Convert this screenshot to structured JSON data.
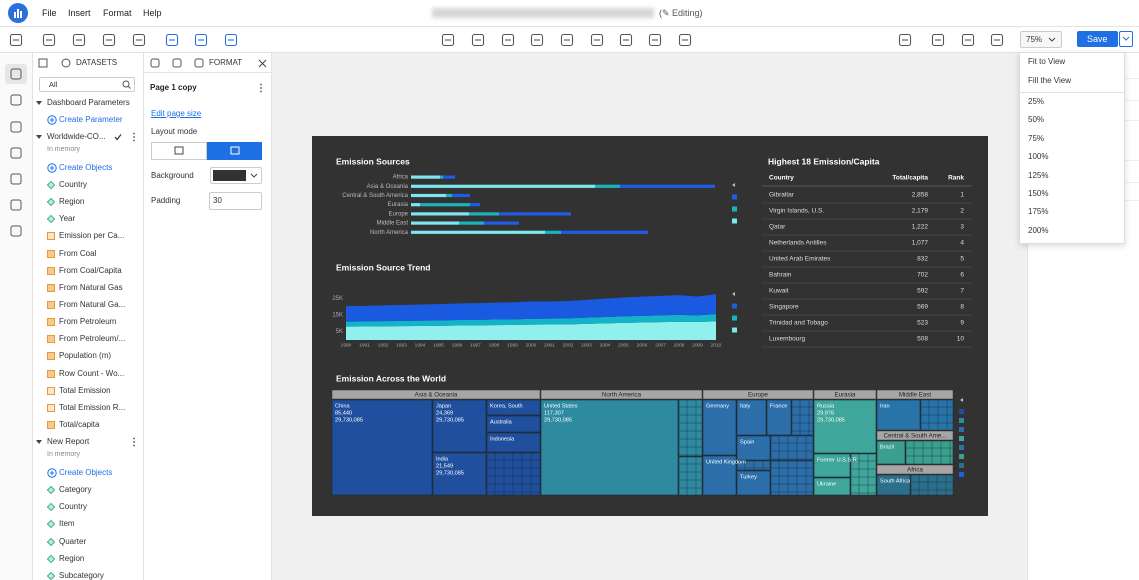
{
  "app_bar": {
    "menu": [
      "File",
      "Insert",
      "Format",
      "Help"
    ],
    "status": "(✎ Editing)",
    "zoom": "75%",
    "save": "Save"
  },
  "zoom_menu": {
    "fit": [
      "Fit to View",
      "Fill the View"
    ],
    "levels": [
      "25%",
      "50%",
      "75%",
      "100%",
      "125%",
      "150%",
      "175%",
      "200%"
    ]
  },
  "datasets_panel": {
    "tab": "DATASETS",
    "filter": "All",
    "groups": [
      {
        "name": "Dashboard Parameters",
        "action": "Create Parameter",
        "items": []
      },
      {
        "name": "Worldwide-CO...",
        "note": "In memory",
        "action": "Create Objects",
        "items": [
          "Country",
          "Region",
          "Year",
          "Emission per Ca...",
          "From Coal",
          "From Coal/Capita",
          "From Natural Gas",
          "From Natural Ga...",
          "From Petroleum",
          "From Petroleum/...",
          "Population (m)",
          "Row Count - Wo...",
          "Total Emission",
          "Total Emission R...",
          "Total/capita"
        ]
      },
      {
        "name": "New Report",
        "note": "In memory",
        "action": "Create Objects",
        "items": [
          "Category",
          "Country",
          "Item",
          "Quarter",
          "Region",
          "Subcategory"
        ]
      }
    ]
  },
  "format_panel": {
    "tab": "FORMAT",
    "page_name": "Page 1 copy",
    "edit_page_size": "Edit page size",
    "layout_mode": "Layout mode",
    "background": "Background",
    "padding": "Padding",
    "padding_value": "30"
  },
  "chart_data": [
    {
      "type": "bar",
      "orientation": "horizontal",
      "stacked": true,
      "title": "Emission Sources",
      "categories": [
        "Africa",
        "Asia & Oceania",
        "Central & South America",
        "Eurasia",
        "Europe",
        "Middle East",
        "North America"
      ],
      "series": [
        {
          "color": "#7ee6ee",
          "values": [
            1450,
            9200,
            1750,
            450,
            2900,
            2400,
            6700
          ]
        },
        {
          "color": "#19b3bf",
          "values": [
            150,
            1250,
            300,
            2500,
            1500,
            1250,
            800
          ]
        },
        {
          "color": "#1f5ce6",
          "values": [
            600,
            4750,
            900,
            500,
            3600,
            1750,
            4350
          ]
        }
      ]
    },
    {
      "type": "area",
      "stacked": true,
      "title": "Emission Source Trend",
      "categories": [
        "1990",
        "1991",
        "1992",
        "1993",
        "1994",
        "1995",
        "1996",
        "1997",
        "1998",
        "1999",
        "2000",
        "2001",
        "2002",
        "2003",
        "2004",
        "2005",
        "2006",
        "2007",
        "2008",
        "2009",
        "2010"
      ],
      "series": [
        {
          "color": "#8ff0ee",
          "values": [
            8000,
            8100,
            8200,
            8300,
            8400,
            8500,
            8700,
            8800,
            8900,
            9000,
            9200,
            9300,
            9400,
            9700,
            10000,
            10300,
            10500,
            10700,
            10900,
            10800,
            11200
          ]
        },
        {
          "color": "#14b3c8",
          "values": [
            3000,
            3000,
            3100,
            3100,
            3200,
            3200,
            3300,
            3300,
            3400,
            3400,
            3500,
            3500,
            3600,
            3700,
            3800,
            3900,
            4000,
            4100,
            4200,
            4000,
            4300
          ]
        },
        {
          "color": "#1a5ae0",
          "values": [
            9500,
            9400,
            9500,
            9600,
            9700,
            9800,
            9900,
            10000,
            10100,
            10200,
            10400,
            10300,
            10400,
            10700,
            11000,
            11300,
            11500,
            11700,
            11800,
            11300,
            12000
          ]
        }
      ],
      "ylim": [
        0,
        30000
      ],
      "yticks": [
        {
          "value": 5000,
          "label": "5K"
        },
        {
          "value": 15000,
          "label": "15K"
        },
        {
          "value": 25000,
          "label": "25K"
        }
      ]
    }
  ],
  "table": {
    "title": "Highest 18 Emission/Capita",
    "columns": [
      "Country",
      "Total/capita",
      "Rank"
    ],
    "rows": [
      [
        "Gibraltar",
        "2,858",
        "1"
      ],
      [
        "Virgin Islands,  U.S.",
        "2,179",
        "2"
      ],
      [
        "Qatar",
        "1,222",
        "3"
      ],
      [
        "Netherlands Antilles",
        "1,077",
        "4"
      ],
      [
        "United Arab Emirates",
        "832",
        "5"
      ],
      [
        "Bahrain",
        "702",
        "6"
      ],
      [
        "Kuwait",
        "592",
        "7"
      ],
      [
        "Singapore",
        "569",
        "8"
      ],
      [
        "Trinidad and Tobago",
        "523",
        "9"
      ],
      [
        "Luxembourg",
        "508",
        "10"
      ]
    ]
  },
  "treemap": {
    "title": "Emission Across the World",
    "regions": [
      "Asia & Oceania",
      "North America",
      "Europe",
      "Eurasia",
      "Middle East",
      "Central & South Ame...",
      "Africa"
    ],
    "cells": [
      [
        "China",
        "85,440",
        "29,730,085"
      ],
      [
        "Japan",
        "24,369",
        "29,730,085"
      ],
      [
        "India",
        "21,549",
        "29,730,085"
      ],
      [
        "Korea, South"
      ],
      [
        "Australia"
      ],
      [
        "Indonesia"
      ],
      [
        "United States",
        "117,307",
        "29,730,085"
      ],
      [
        "Germany"
      ],
      [
        "Italy"
      ],
      [
        "France"
      ],
      [
        "Spain"
      ],
      [
        "United Kingdom"
      ],
      [
        "Turkey"
      ],
      [
        "Russia",
        "29,976",
        "29,730,085"
      ],
      [
        "Former U.S.S.R."
      ],
      [
        "Ukraine"
      ],
      [
        "Iran"
      ],
      [
        "Brazil"
      ],
      [
        "South Africa"
      ]
    ]
  }
}
